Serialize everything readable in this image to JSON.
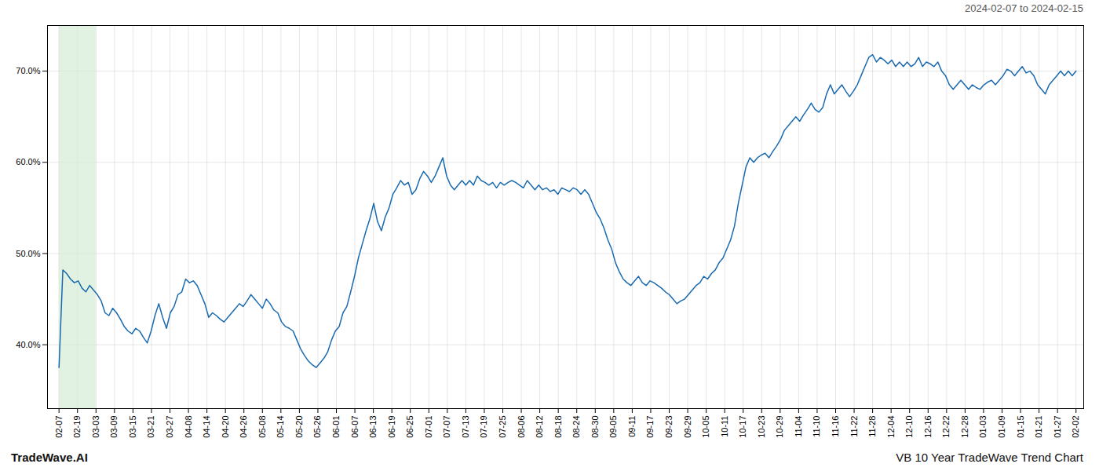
{
  "chart_data": {
    "type": "line",
    "subtitle": "2024-02-07 to 2024-02-15",
    "annotations": [
      "TradeWave.AI",
      "VB 10 Year TradeWave Trend Chart"
    ],
    "color": "#1a6ab0",
    "highlight_range": [
      0,
      9.636364
    ],
    "highlight_color": "#d6ecd6",
    "grid": true,
    "xlim": [
      -3,
      267
    ],
    "xticks": [
      {
        "value": 0,
        "label": "02-07"
      },
      {
        "value": 4.818182,
        "label": "02-19"
      },
      {
        "value": 9.636364,
        "label": "03-03"
      },
      {
        "value": 14.454545,
        "label": "03-09"
      },
      {
        "value": 19.272727,
        "label": "03-15"
      },
      {
        "value": 24.090909,
        "label": "03-21"
      },
      {
        "value": 28.909091,
        "label": "03-27"
      },
      {
        "value": 33.727273,
        "label": "04-08"
      },
      {
        "value": 38.545455,
        "label": "04-14"
      },
      {
        "value": 43.363636,
        "label": "04-20"
      },
      {
        "value": 48.181818,
        "label": "04-26"
      },
      {
        "value": 53,
        "label": "05-08"
      },
      {
        "value": 57.818182,
        "label": "05-14"
      },
      {
        "value": 62.636364,
        "label": "05-20"
      },
      {
        "value": 67.454545,
        "label": "05-26"
      },
      {
        "value": 72.272727,
        "label": "06-01"
      },
      {
        "value": 77.090909,
        "label": "06-07"
      },
      {
        "value": 81.909091,
        "label": "06-13"
      },
      {
        "value": 86.727273,
        "label": "06-19"
      },
      {
        "value": 91.545455,
        "label": "06-25"
      },
      {
        "value": 96.363636,
        "label": "07-01"
      },
      {
        "value": 101.181818,
        "label": "07-07"
      },
      {
        "value": 106,
        "label": "07-13"
      },
      {
        "value": 110.818182,
        "label": "07-19"
      },
      {
        "value": 115.636364,
        "label": "07-25"
      },
      {
        "value": 120.454545,
        "label": "08-06"
      },
      {
        "value": 125.272727,
        "label": "08-12"
      },
      {
        "value": 130.090909,
        "label": "08-18"
      },
      {
        "value": 134.909091,
        "label": "08-24"
      },
      {
        "value": 139.727273,
        "label": "08-30"
      },
      {
        "value": 144.545455,
        "label": "09-05"
      },
      {
        "value": 149.363636,
        "label": "09-11"
      },
      {
        "value": 154.181818,
        "label": "09-17"
      },
      {
        "value": 159,
        "label": "09-23"
      },
      {
        "value": 163.818182,
        "label": "09-29"
      },
      {
        "value": 168.636364,
        "label": "10-05"
      },
      {
        "value": 173.454545,
        "label": "10-11"
      },
      {
        "value": 178.272727,
        "label": "10-17"
      },
      {
        "value": 183.090909,
        "label": "10-23"
      },
      {
        "value": 187.909091,
        "label": "10-29"
      },
      {
        "value": 192.727273,
        "label": "11-04"
      },
      {
        "value": 197.545455,
        "label": "11-10"
      },
      {
        "value": 202.363636,
        "label": "11-16"
      },
      {
        "value": 207.181818,
        "label": "11-22"
      },
      {
        "value": 212,
        "label": "11-28"
      },
      {
        "value": 216.818182,
        "label": "12-04"
      },
      {
        "value": 221.636364,
        "label": "12-10"
      },
      {
        "value": 226.454545,
        "label": "12-16"
      },
      {
        "value": 231.272727,
        "label": "12-22"
      },
      {
        "value": 236.090909,
        "label": "12-28"
      },
      {
        "value": 240.909091,
        "label": "01-03"
      },
      {
        "value": 245.727273,
        "label": "01-09"
      },
      {
        "value": 250.545455,
        "label": "01-15"
      },
      {
        "value": 255.363636,
        "label": "01-21"
      },
      {
        "value": 260.181818,
        "label": "01-27"
      },
      {
        "value": 265,
        "label": "02-02"
      }
    ],
    "ylim": [
      33,
      75
    ],
    "yticks": [
      {
        "value": 40.0,
        "label": "40.0%"
      },
      {
        "value": 50.0,
        "label": "50.0%"
      },
      {
        "value": 60.0,
        "label": "60.0%"
      },
      {
        "value": 70.0,
        "label": "70.0%"
      }
    ],
    "values": [
      37.5,
      48.2,
      47.8,
      47.2,
      46.8,
      47.0,
      46.2,
      45.8,
      46.5,
      46.0,
      45.5,
      44.8,
      43.5,
      43.2,
      44.0,
      43.5,
      42.8,
      42.0,
      41.5,
      41.2,
      41.8,
      41.5,
      40.8,
      40.2,
      41.5,
      43.2,
      44.5,
      43.0,
      41.8,
      43.5,
      44.2,
      45.5,
      45.8,
      47.2,
      46.8,
      47.0,
      46.5,
      45.5,
      44.5,
      43.0,
      43.5,
      43.2,
      42.8,
      42.5,
      43.0,
      43.5,
      44.0,
      44.5,
      44.2,
      44.8,
      45.5,
      45.0,
      44.5,
      44.0,
      45.0,
      44.5,
      43.8,
      43.5,
      42.5,
      42.0,
      41.8,
      41.5,
      40.5,
      39.5,
      38.8,
      38.2,
      37.8,
      37.5,
      38.0,
      38.5,
      39.2,
      40.5,
      41.5,
      42.0,
      43.5,
      44.2,
      45.8,
      47.5,
      49.5,
      51.0,
      52.5,
      53.8,
      55.5,
      53.5,
      52.5,
      54.0,
      55.0,
      56.5,
      57.2,
      58.0,
      57.5,
      57.8,
      56.5,
      57.0,
      58.2,
      59.0,
      58.5,
      57.8,
      58.5,
      59.5,
      60.5,
      58.5,
      57.5,
      57.0,
      57.5,
      58.0,
      57.5,
      58.0,
      57.5,
      58.5,
      58.0,
      57.8,
      57.5,
      57.8,
      57.2,
      57.8,
      57.5,
      57.8,
      58.0,
      57.8,
      57.5,
      57.2,
      58.0,
      57.5,
      57.0,
      57.5,
      57.0,
      57.2,
      56.8,
      57.0,
      56.5,
      57.2,
      57.0,
      56.8,
      57.2,
      57.0,
      56.5,
      57.0,
      56.5,
      55.5,
      54.5,
      53.8,
      52.8,
      51.5,
      50.5,
      49.0,
      48.0,
      47.2,
      46.8,
      46.5,
      47.0,
      47.5,
      46.8,
      46.5,
      47.0,
      46.8,
      46.5,
      46.2,
      45.8,
      45.5,
      45.0,
      44.5,
      44.8,
      45.0,
      45.5,
      46.0,
      46.5,
      46.8,
      47.5,
      47.2,
      47.8,
      48.2,
      49.0,
      49.5,
      50.5,
      51.5,
      53.0,
      55.5,
      57.5,
      59.5,
      60.5,
      60.0,
      60.5,
      60.8,
      61.0,
      60.5,
      61.2,
      61.8,
      62.5,
      63.5,
      64.0,
      64.5,
      65.0,
      64.5,
      65.2,
      65.8,
      66.5,
      65.8,
      65.5,
      66.0,
      67.5,
      68.5,
      67.5,
      68.0,
      68.5,
      67.8,
      67.2,
      67.8,
      68.5,
      69.5,
      70.5,
      71.5,
      71.8,
      71.0,
      71.5,
      71.2,
      70.8,
      71.2,
      70.5,
      71.0,
      70.5,
      71.0,
      70.5,
      70.8,
      71.5,
      70.5,
      71.0,
      70.8,
      70.5,
      71.0,
      70.0,
      69.5,
      68.5,
      68.0,
      68.5,
      69.0,
      68.5,
      68.0,
      68.5,
      68.2,
      68.0,
      68.5,
      68.8,
      69.0,
      68.5,
      69.0,
      69.5,
      70.2,
      70.0,
      69.5,
      70.0,
      70.5,
      69.8,
      70.0,
      69.5,
      68.5,
      68.0,
      67.5,
      68.5,
      69.0,
      69.5,
      70.0,
      69.5,
      70.0,
      69.5,
      70.0
    ]
  }
}
